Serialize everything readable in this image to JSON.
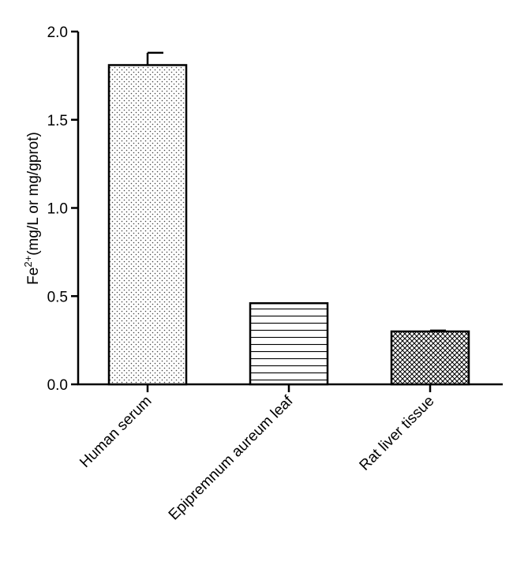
{
  "chart_data": {
    "type": "bar",
    "categories": [
      "Human serum",
      "Epipremnum aureum leaf",
      "Rat liver tissue"
    ],
    "values": [
      1.81,
      0.46,
      0.3
    ],
    "errors": [
      0.07,
      0.0,
      0.005
    ],
    "ylabel": {
      "base": "Fe",
      "sup": "2+",
      "rest": "(mg/L or mg/gprot)"
    },
    "ylim": [
      0,
      2.0
    ],
    "yticks": [
      "0.0",
      "0.5",
      "1.0",
      "1.5",
      "2.0"
    ],
    "ytick_values": [
      0,
      0.5,
      1.0,
      1.5,
      2.0
    ],
    "patterns": [
      "dots",
      "horizontal-lines",
      "crosshatch"
    ],
    "bar_fill": "#ffffff",
    "line_color": "#000000",
    "grid": false,
    "legend": "none"
  }
}
